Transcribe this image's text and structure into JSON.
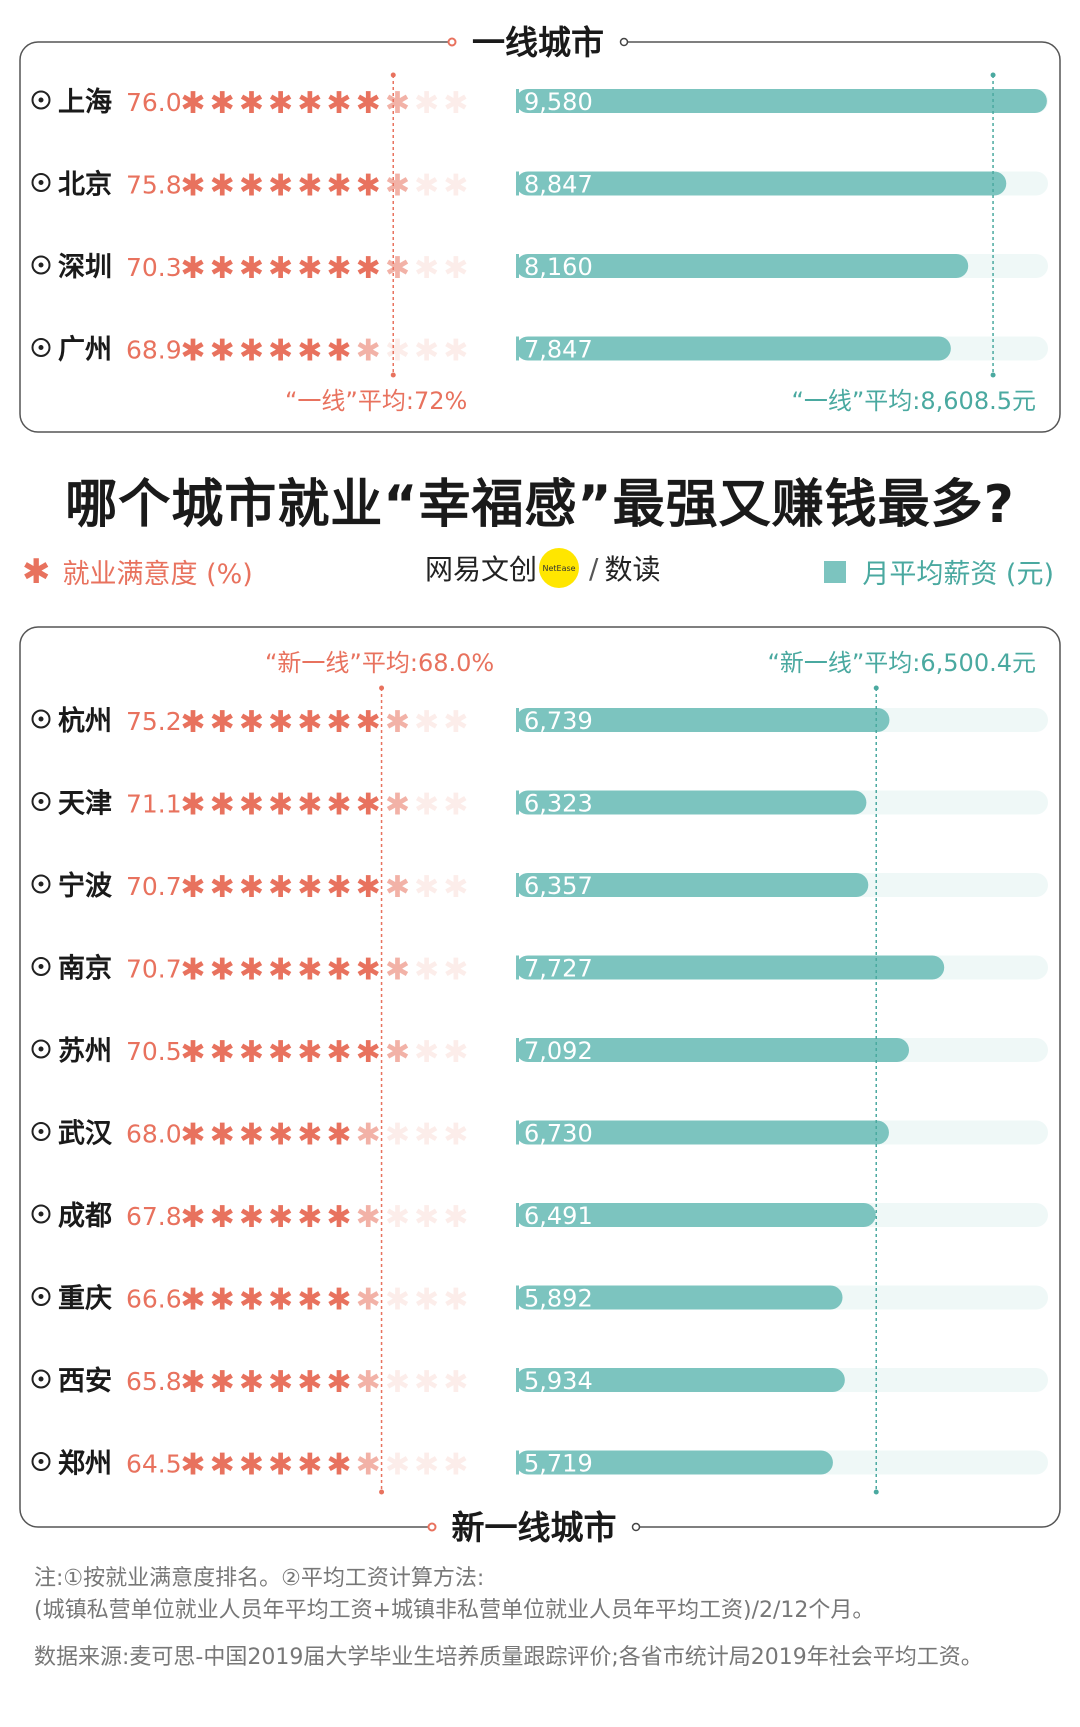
{
  "title": "哪个城市就业“幸福感”最强又赚钱最多?",
  "legend": {
    "satisfaction": "就业满意度 (%)",
    "salary": "月平均薪资 (元)"
  },
  "brand": {
    "name": "网易文创",
    "badge": "NetEase",
    "sub": "数读"
  },
  "notes": {
    "line1": "注:①按就业满意度排名。②平均工资计算方法:",
    "line2": "(城镇私营单位就业人员年平均工资+城镇非私营单位就业人员年平均工资)/2/12个月。",
    "source": "数据来源:麦可思-中国2019届大学毕业生培养质量跟踪评价;各省市统计局2019年社会平均工资。"
  },
  "colors": {
    "satisfaction": "#e8725e",
    "salary": "#7cc4bf",
    "salary_text": "#4aa9a0",
    "salary_label": "#ffffff",
    "panel_border": "#555555"
  },
  "chart_data": [
    {
      "type": "bar",
      "title": "一线城市",
      "categories": [
        "上海",
        "北京",
        "深圳",
        "广州"
      ],
      "series": [
        {
          "name": "就业满意度 (%)",
          "values": [
            76.0,
            75.8,
            70.3,
            68.9
          ],
          "labels": [
            "76.0",
            "75.8",
            "70.3",
            "68.9"
          ],
          "icon": "asterisk",
          "max": 100
        },
        {
          "name": "月平均薪资 (元)",
          "values": [
            9580,
            8847,
            8160,
            7847
          ],
          "labels": [
            "9,580",
            "8,847",
            "8,160",
            "7,847"
          ]
        }
      ],
      "averages": {
        "satisfaction": {
          "value": 72,
          "label": "“一线”平均:72%"
        },
        "salary": {
          "value": 8608.5,
          "label": "“一线”平均:8,608.5元"
        }
      },
      "salary_axis_max": 9600
    },
    {
      "type": "bar",
      "title": "新一线城市",
      "categories": [
        "杭州",
        "天津",
        "宁波",
        "南京",
        "苏州",
        "武汉",
        "成都",
        "重庆",
        "西安",
        "郑州"
      ],
      "series": [
        {
          "name": "就业满意度 (%)",
          "values": [
            75.2,
            71.1,
            70.7,
            70.7,
            70.5,
            68.0,
            67.8,
            66.6,
            65.8,
            64.5
          ],
          "labels": [
            "75.2",
            "71.1",
            "70.7",
            "70.7",
            "70.5",
            "68.0",
            "67.8",
            "66.6",
            "65.8",
            "64.5"
          ],
          "icon": "asterisk",
          "max": 100
        },
        {
          "name": "月平均薪资 (元)",
          "values": [
            6739,
            6323,
            6357,
            7727,
            7092,
            6730,
            6491,
            5892,
            5934,
            5719
          ],
          "labels": [
            "6,739",
            "6,323",
            "6,357",
            "7,727",
            "7,092",
            "6,730",
            "6,491",
            "5,892",
            "5,934",
            "5,719"
          ]
        }
      ],
      "averages": {
        "satisfaction": {
          "value": 68.0,
          "label": "“新一线”平均:68.0%"
        },
        "salary": {
          "value": 6500.4,
          "label": "“新一线”平均:6,500.4元"
        }
      },
      "salary_axis_max": 9600
    }
  ]
}
